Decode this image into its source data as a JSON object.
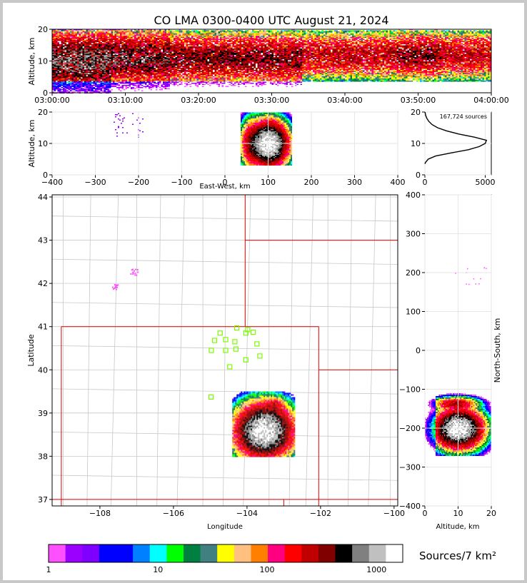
{
  "chart_data": {
    "title": "CO LMA 0300-0400 UTC August 21, 2024",
    "type": "heatmap",
    "colors": {
      "frame": "#c8c8c8",
      "background": "#ffffff",
      "state_border": "#e00000",
      "county_border": "#c8c8c8",
      "station": "#7cfc00",
      "grid": "#e6e6e6"
    },
    "time_altitude": {
      "type": "heatmap",
      "ylabel": "Altitude, km",
      "xlim_minutes": [
        0,
        60
      ],
      "ylim": [
        0,
        20
      ],
      "yticks": [
        "0",
        "10",
        "20"
      ],
      "xticks": [
        "03:00:00",
        "03:10:00",
        "03:20:00",
        "03:30:00",
        "03:40:00",
        "03:50:00",
        "04:00:00"
      ],
      "activity_bands": [
        {
          "start": 0,
          "end": 8,
          "center": 10,
          "spread": 4.5,
          "intensity": 1.0
        },
        {
          "start": 8,
          "end": 16,
          "center": 11,
          "spread": 4.2,
          "intensity": 0.75
        },
        {
          "start": 16,
          "end": 34,
          "center": 11,
          "spread": 3.8,
          "intensity": 0.6
        },
        {
          "start": 34,
          "end": 47,
          "center": 12,
          "spread": 3.5,
          "intensity": 0.4
        },
        {
          "start": 47,
          "end": 53,
          "center": 12,
          "spread": 3.5,
          "intensity": 0.55
        },
        {
          "start": 53,
          "end": 60,
          "center": 12,
          "spread": 3.5,
          "intensity": 0.4
        }
      ]
    },
    "ew_altitude": {
      "type": "heatmap",
      "xlabel": "East-West, km",
      "ylabel": "Altitude, km",
      "xlim": [
        -400,
        400
      ],
      "ylim": [
        0,
        20
      ],
      "xticks": [
        "−400",
        "−300",
        "−200",
        "−100",
        "0",
        "100",
        "200",
        "300",
        "400"
      ],
      "yticks": [
        "0",
        "10",
        "20"
      ],
      "cores": [
        {
          "x": 100,
          "alt": 10,
          "sx": 20,
          "sz": 3.2,
          "peak": 2600
        },
        {
          "x": 60,
          "alt": 10,
          "sx": 12,
          "sz": 3.5,
          "peak": 400
        }
      ]
    },
    "altitude_histogram": {
      "type": "line",
      "xlim": [
        0,
        5500
      ],
      "ylim": [
        0,
        20
      ],
      "xticks": [
        "0",
        "5000"
      ],
      "yticks": [
        "0",
        "10",
        "20"
      ],
      "annotation": "167,724 sources",
      "profile": [
        [
          3.5,
          0
        ],
        [
          4,
          60
        ],
        [
          5,
          280
        ],
        [
          6,
          900
        ],
        [
          7,
          2200
        ],
        [
          8,
          3600
        ],
        [
          9,
          4500
        ],
        [
          10,
          5000
        ],
        [
          11,
          5100
        ],
        [
          12,
          4100
        ],
        [
          13,
          2800
        ],
        [
          14,
          1800
        ],
        [
          15,
          1050
        ],
        [
          16,
          600
        ],
        [
          17,
          330
        ],
        [
          18,
          160
        ],
        [
          19,
          60
        ],
        [
          20,
          10
        ]
      ]
    },
    "plan_view": {
      "type": "heatmap",
      "xlabel": "Longitude",
      "ylabel": "Latitude",
      "xlim": [
        -109.3,
        -99.9
      ],
      "ylim": [
        36.85,
        44.05
      ],
      "xticks": [
        "−108",
        "−106",
        "−104",
        "−102",
        "−100"
      ],
      "yticks": [
        "37",
        "38",
        "39",
        "40",
        "41",
        "42",
        "43",
        "44"
      ],
      "cores": [
        {
          "lon": -103.55,
          "lat": 38.6,
          "slon": 0.35,
          "slat": 0.28,
          "peak": 2400
        },
        {
          "lon": -103.25,
          "lat": 39.2,
          "slon": 0.12,
          "slat": 0.08,
          "peak": 220
        }
      ],
      "stations": [
        {
          "lon": -104.28,
          "lat": 40.97
        },
        {
          "lon": -103.98,
          "lat": 40.93
        },
        {
          "lon": -103.83,
          "lat": 40.87
        },
        {
          "lon": -104.03,
          "lat": 40.85
        },
        {
          "lon": -104.73,
          "lat": 40.85
        },
        {
          "lon": -104.88,
          "lat": 40.68
        },
        {
          "lon": -104.58,
          "lat": 40.7
        },
        {
          "lon": -104.33,
          "lat": 40.65
        },
        {
          "lon": -103.73,
          "lat": 40.6
        },
        {
          "lon": -104.97,
          "lat": 40.45
        },
        {
          "lon": -104.58,
          "lat": 40.45
        },
        {
          "lon": -104.3,
          "lat": 40.48
        },
        {
          "lon": -103.65,
          "lat": 40.32
        },
        {
          "lon": -104.03,
          "lat": 40.23
        },
        {
          "lon": -104.47,
          "lat": 40.07
        },
        {
          "lon": -104.98,
          "lat": 39.37
        }
      ],
      "far_patches": [
        {
          "lon": -107.08,
          "lat": 42.28,
          "slon": 0.05,
          "slat": 0.04
        },
        {
          "lon": -107.6,
          "lat": 41.93,
          "slon": 0.04,
          "slat": 0.03
        }
      ]
    },
    "ns_altitude": {
      "type": "heatmap",
      "xlabel": "Altitude, km",
      "ylabel": "North-South, km",
      "xlim": [
        0,
        20
      ],
      "ylim": [
        -400,
        400
      ],
      "xticks": [
        "0",
        "10",
        "20"
      ],
      "yticks": [
        "−400",
        "−300",
        "−200",
        "−100",
        "0",
        "100",
        "200",
        "300",
        "400"
      ],
      "cores": [
        {
          "alt": 10,
          "y": -200,
          "sa": 3.2,
          "sy": 22,
          "peak": 2600
        },
        {
          "alt": 9,
          "y": -135,
          "sa": 3.0,
          "sy": 7,
          "peak": 420
        }
      ]
    },
    "colorbar": {
      "type": "colorbar",
      "label": "Sources/7 km²",
      "ticks": [
        "1",
        "10",
        "100",
        "1000"
      ],
      "colors": [
        "#ff50ff",
        "#9b00ff",
        "#8000ff",
        "#0000ff",
        "#0000ff",
        "#0080ff",
        "#00ffff",
        "#00ff00",
        "#008040",
        "#408080",
        "#ffff00",
        "#ffc080",
        "#ff8000",
        "#ff0080",
        "#ff0000",
        "#c00000",
        "#800000",
        "#000000",
        "#808080",
        "#c0c0c0",
        "#ffffff"
      ]
    }
  }
}
